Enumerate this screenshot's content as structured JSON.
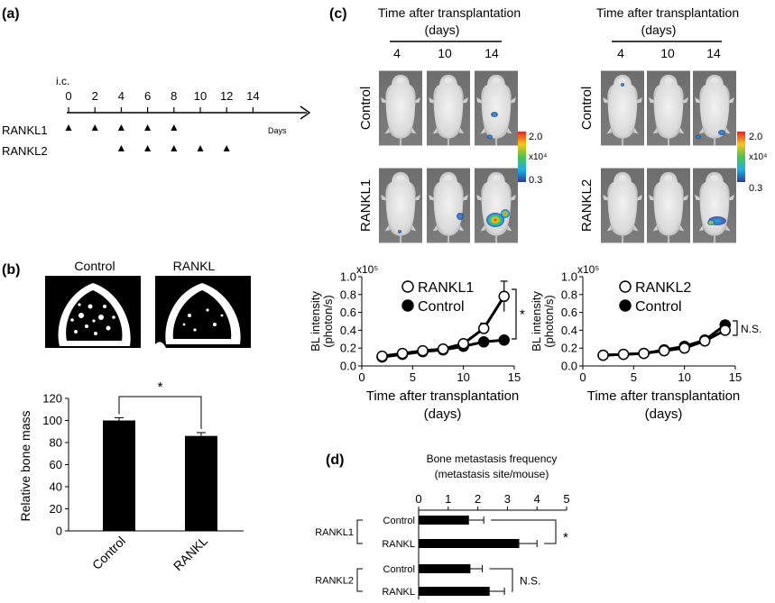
{
  "panel_a": {
    "label": "(a)",
    "ic_label": "i.c.",
    "axis_ticks": [
      "0",
      "2",
      "4",
      "6",
      "8",
      "10",
      "12",
      "14"
    ],
    "axis_unit": "Days",
    "rows": [
      {
        "name": "RANKL1",
        "days": [
          0,
          2,
          4,
          6,
          8
        ]
      },
      {
        "name": "RANKL2",
        "days": [
          4,
          6,
          8,
          10,
          12
        ]
      }
    ]
  },
  "panel_b": {
    "label": "(b)",
    "image_titles": [
      "Control",
      "RANKL"
    ]
  },
  "panel_c": {
    "label": "(c)",
    "header_line1": "Time after transplantation",
    "header_line2": "(days)",
    "days": [
      "4",
      "10",
      "14"
    ],
    "left_row_labels": [
      "Control",
      "RANKL1"
    ],
    "right_row_labels": [
      "Control",
      "RANKL2"
    ],
    "colorbar": {
      "max": "2.0",
      "unit": "x10⁴",
      "min": "0.3"
    }
  },
  "panel_d": {
    "label": "(d)",
    "title_line1": "Bone metastasis frequency",
    "title_line2": "(metastasis site/mouse)"
  },
  "chart_data": [
    {
      "type": "bar",
      "id": "bone-mass",
      "categories": [
        "Control",
        "RANKL"
      ],
      "values": [
        100,
        86
      ],
      "errors": [
        2.5,
        3
      ],
      "ylabel": "Relative bone mass",
      "ylim": [
        0,
        120
      ],
      "yticks": [
        "0",
        "20",
        "40",
        "60",
        "80",
        "100",
        "120"
      ],
      "significance": "*"
    },
    {
      "type": "line",
      "id": "bl-rankl1",
      "x": [
        2,
        4,
        6,
        8,
        10,
        12,
        14
      ],
      "series": [
        {
          "name": "RANKL1",
          "marker": "open",
          "values": [
            0.11,
            0.14,
            0.17,
            0.19,
            0.25,
            0.42,
            0.78
          ],
          "errors": [
            0.02,
            0.02,
            0.02,
            0.02,
            0.03,
            0.06,
            0.17
          ]
        },
        {
          "name": "Control",
          "marker": "filled",
          "values": [
            0.1,
            0.13,
            0.16,
            0.18,
            0.22,
            0.27,
            0.29
          ],
          "errors": [
            0.01,
            0.01,
            0.01,
            0.01,
            0.02,
            0.02,
            0.02
          ]
        }
      ],
      "xlabel_line1": "Time after transplantation",
      "xlabel_line2": "(days)",
      "ylabel_line1": "BL intensity",
      "ylabel_line2": "(photon/s)",
      "y_multiplier": "x10⁵",
      "xlim": [
        0,
        15
      ],
      "ylim": [
        0,
        1.0
      ],
      "xticks": [
        "0",
        "5",
        "10",
        "15"
      ],
      "yticks": [
        "0.0",
        "0.2",
        "0.4",
        "0.6",
        "0.8",
        "1.0"
      ],
      "significance": "*"
    },
    {
      "type": "line",
      "id": "bl-rankl2",
      "x": [
        2,
        4,
        6,
        8,
        10,
        12,
        14
      ],
      "series": [
        {
          "name": "RANKL2",
          "marker": "open",
          "values": [
            0.12,
            0.13,
            0.14,
            0.17,
            0.2,
            0.28,
            0.4
          ],
          "errors": [
            0.01,
            0.01,
            0.01,
            0.01,
            0.02,
            0.02,
            0.03
          ]
        },
        {
          "name": "Control",
          "marker": "filled",
          "values": [
            0.12,
            0.13,
            0.14,
            0.18,
            0.22,
            0.29,
            0.46
          ],
          "errors": [
            0.01,
            0.01,
            0.01,
            0.01,
            0.02,
            0.02,
            0.03
          ]
        }
      ],
      "xlabel_line1": "Time after transplantation",
      "xlabel_line2": "(days)",
      "ylabel_line1": "BL intensity",
      "ylabel_line2": "(photon/s)",
      "y_multiplier": "x10⁵",
      "xlim": [
        0,
        15
      ],
      "ylim": [
        0,
        1.0
      ],
      "xticks": [
        "0",
        "5",
        "10",
        "15"
      ],
      "yticks": [
        "0.0",
        "0.2",
        "0.4",
        "0.6",
        "0.8",
        "1.0"
      ],
      "significance": "N.S."
    },
    {
      "type": "bar",
      "id": "metastasis-frequency",
      "orientation": "horizontal",
      "groups": [
        {
          "name": "RANKL1",
          "categories": [
            "Control",
            "RANKL"
          ],
          "values": [
            1.7,
            3.4
          ],
          "errors": [
            0.5,
            0.6
          ],
          "significance": "*"
        },
        {
          "name": "RANKL2",
          "categories": [
            "Control",
            "RANKL"
          ],
          "values": [
            1.75,
            2.4
          ],
          "errors": [
            0.4,
            0.5
          ],
          "significance": "N.S."
        }
      ],
      "xlim": [
        0,
        5
      ],
      "xticks": [
        "0",
        "1",
        "2",
        "3",
        "4",
        "5"
      ]
    }
  ]
}
